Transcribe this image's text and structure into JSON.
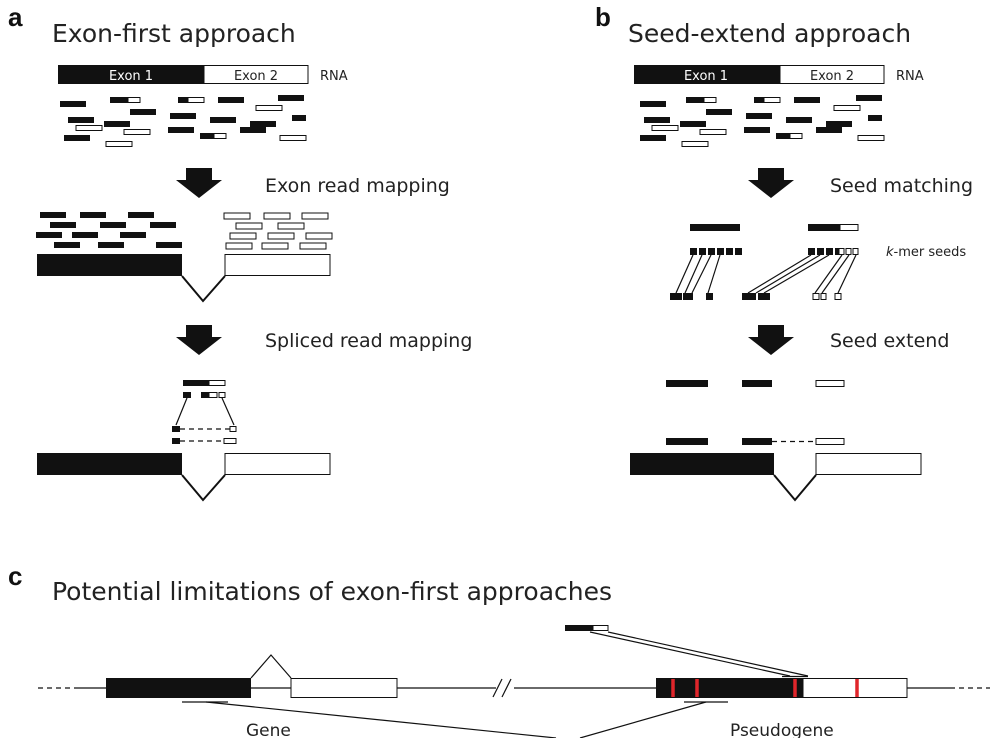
{
  "panel_a": {
    "letter": "a",
    "title": "Exon-first approach",
    "exon1": "Exon 1",
    "exon2": "Exon 2",
    "rna": "RNA",
    "step1": "Exon read mapping",
    "step2": "Spliced read mapping"
  },
  "panel_b": {
    "letter": "b",
    "title": "Seed-extend approach",
    "exon1": "Exon 1",
    "exon2": "Exon 2",
    "rna": "RNA",
    "step1": "Seed matching",
    "kmer_italic": "k",
    "kmer_rest": "-mer seeds",
    "step2": "Seed extend"
  },
  "panel_c": {
    "letter": "c",
    "title": "Potential limitations of exon-first approaches",
    "gene": "Gene",
    "pseudogene": "Pseudogene"
  },
  "colors": {
    "exon_dark": "#111111",
    "exon_light": "#ffffff",
    "mutation": "#e0262b"
  }
}
